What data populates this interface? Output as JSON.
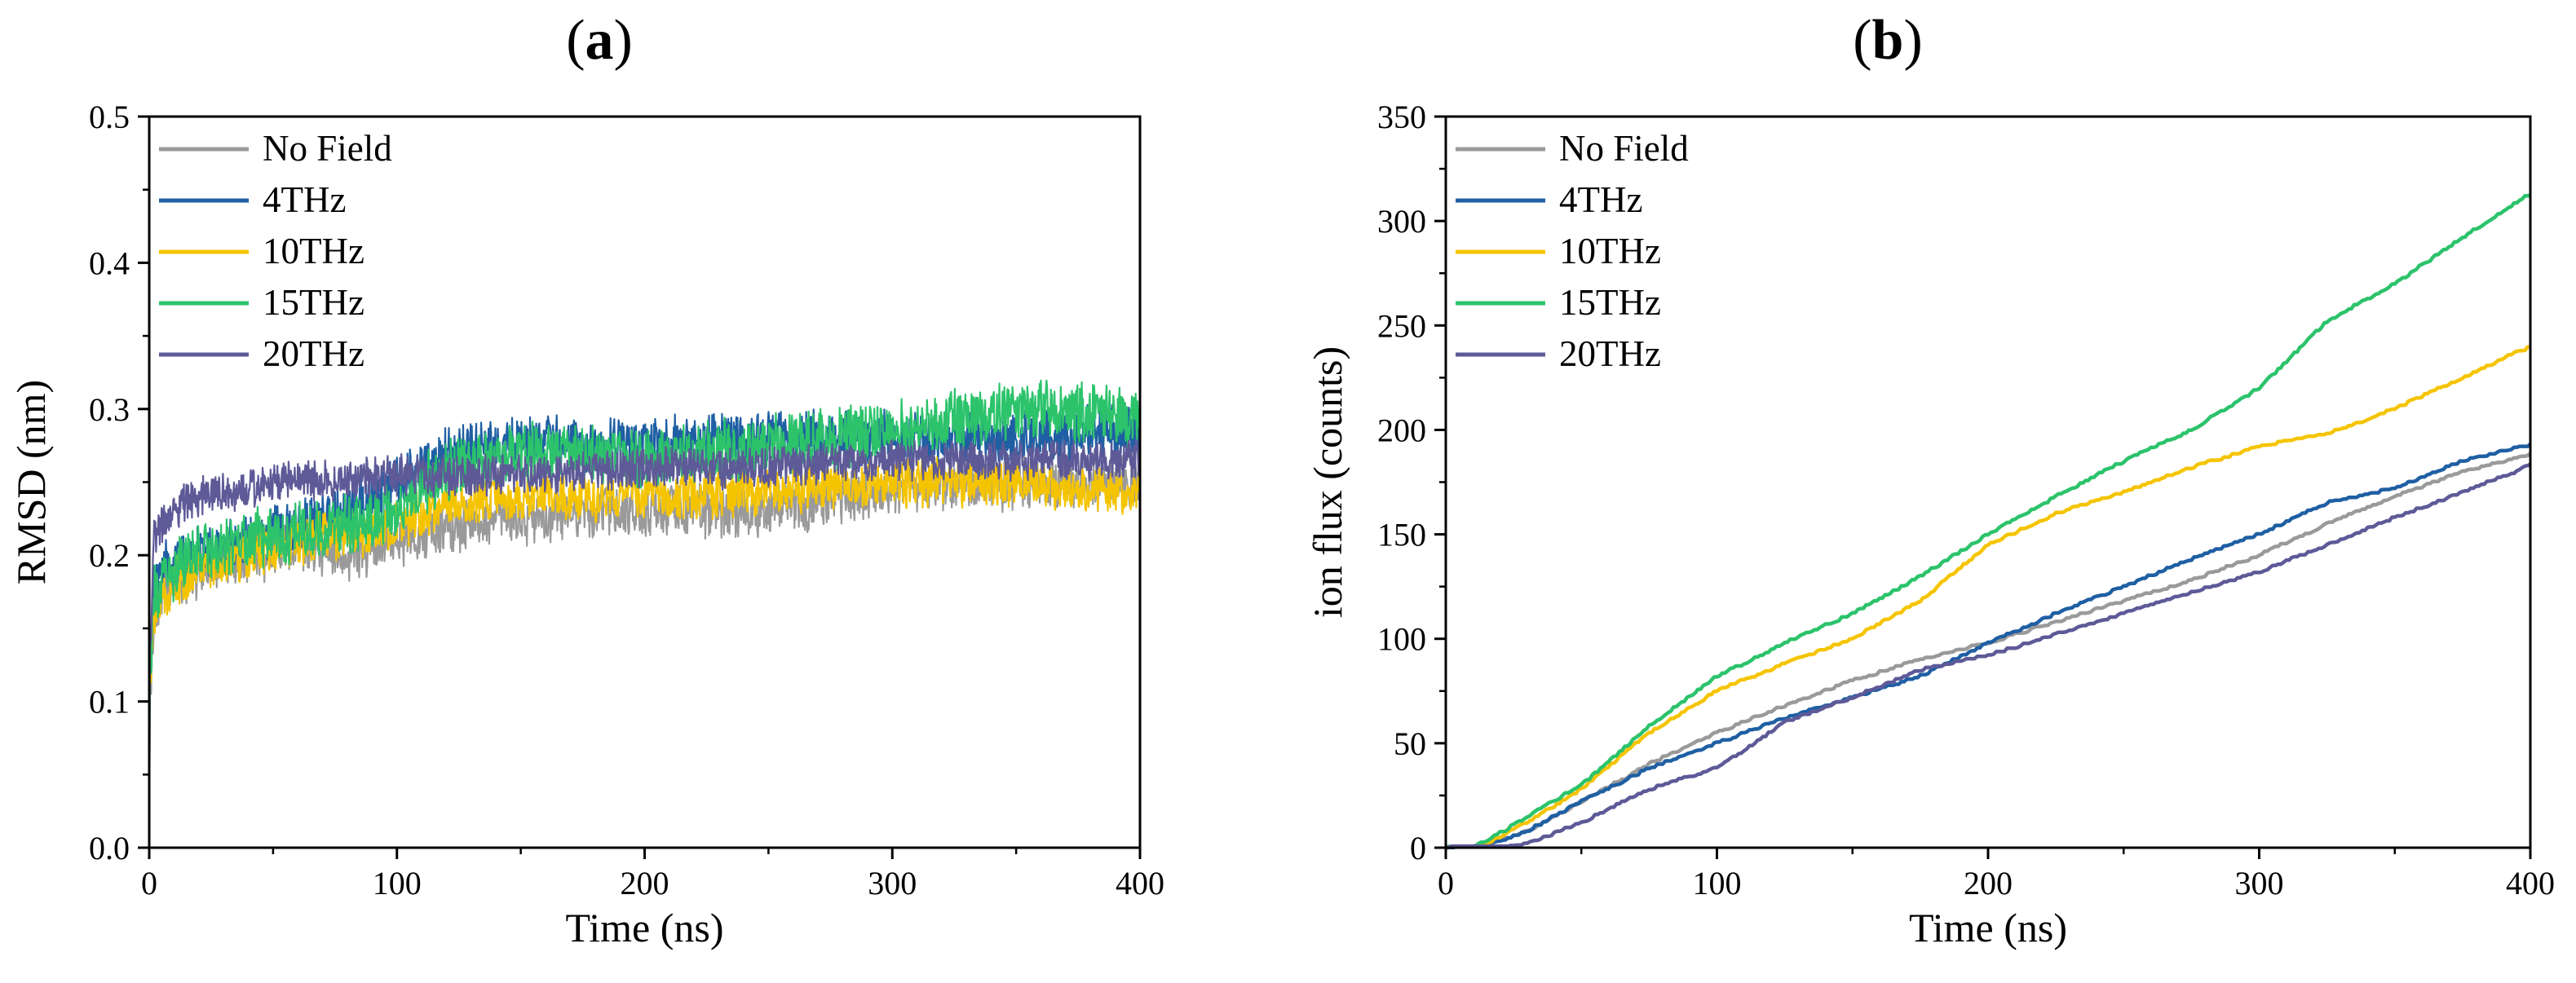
{
  "panels": [
    {
      "label_pre": "(",
      "label_mid": "a",
      "label_post": ")"
    },
    {
      "label_pre": "(",
      "label_mid": "b",
      "label_post": ")"
    }
  ],
  "chart_data": [
    {
      "type": "line",
      "panel": "a",
      "xlabel": "Time (ns)",
      "ylabel": "RMSD (nm)",
      "xlim": [
        0,
        400
      ],
      "ylim": [
        0,
        0.5
      ],
      "xticks": [
        "0",
        "100",
        "200",
        "300",
        "400"
      ],
      "yticks": [
        "0.0",
        "0.1",
        "0.2",
        "0.3",
        "0.4",
        "0.5"
      ],
      "legend_position": "top-left",
      "noisy": true,
      "series": [
        {
          "name": "No Field",
          "color": "#9a9a9a",
          "x": [
            0,
            2,
            5,
            10,
            20,
            40,
            60,
            80,
            100,
            120,
            150,
            200,
            250,
            300,
            350,
            400
          ],
          "y": [
            0.1,
            0.16,
            0.17,
            0.18,
            0.19,
            0.2,
            0.205,
            0.2,
            0.21,
            0.22,
            0.225,
            0.23,
            0.23,
            0.245,
            0.25,
            0.25
          ],
          "amp": 0.016
        },
        {
          "name": "4THz",
          "color": "#1f5fa3",
          "x": [
            0,
            2,
            5,
            10,
            20,
            40,
            60,
            80,
            100,
            120,
            150,
            200,
            250,
            300,
            350,
            400
          ],
          "y": [
            0.11,
            0.18,
            0.19,
            0.195,
            0.2,
            0.21,
            0.22,
            0.23,
            0.25,
            0.27,
            0.275,
            0.275,
            0.28,
            0.28,
            0.28,
            0.285
          ],
          "amp": 0.016
        },
        {
          "name": "10THz",
          "color": "#f5c400",
          "x": [
            0,
            2,
            5,
            10,
            20,
            40,
            60,
            80,
            100,
            120,
            150,
            200,
            250,
            300,
            350,
            400
          ],
          "y": [
            0.11,
            0.16,
            0.17,
            0.18,
            0.19,
            0.2,
            0.21,
            0.215,
            0.22,
            0.235,
            0.24,
            0.24,
            0.245,
            0.25,
            0.25,
            0.24
          ],
          "amp": 0.015
        },
        {
          "name": "15THz",
          "color": "#2cc36b",
          "x": [
            0,
            2,
            5,
            10,
            20,
            40,
            60,
            80,
            100,
            120,
            150,
            200,
            250,
            300,
            350,
            400
          ],
          "y": [
            0.11,
            0.17,
            0.18,
            0.19,
            0.2,
            0.21,
            0.215,
            0.22,
            0.23,
            0.26,
            0.27,
            0.265,
            0.275,
            0.285,
            0.3,
            0.295
          ],
          "amp": 0.018
        },
        {
          "name": "20THz",
          "color": "#5e5a98",
          "x": [
            0,
            2,
            5,
            10,
            20,
            40,
            60,
            80,
            100,
            120,
            150,
            200,
            250,
            300,
            350,
            400
          ],
          "y": [
            0.12,
            0.21,
            0.22,
            0.23,
            0.24,
            0.245,
            0.25,
            0.25,
            0.255,
            0.255,
            0.255,
            0.26,
            0.26,
            0.265,
            0.265,
            0.265
          ],
          "amp": 0.012
        }
      ]
    },
    {
      "type": "line",
      "panel": "b",
      "xlabel": "Time (ns)",
      "ylabel": "ion flux (counts)",
      "xlim": [
        0,
        400
      ],
      "ylim": [
        0,
        350
      ],
      "xticks": [
        "0",
        "100",
        "200",
        "300",
        "400"
      ],
      "yticks": [
        "0",
        "50",
        "100",
        "150",
        "200",
        "250",
        "300",
        "350"
      ],
      "legend_position": "top-left",
      "noisy": false,
      "series": [
        {
          "name": "No Field",
          "color": "#9a9a9a",
          "x": [
            0,
            10,
            20,
            30,
            50,
            75,
            100,
            125,
            150,
            175,
            200,
            225,
            250,
            275,
            300,
            325,
            350,
            375,
            400
          ],
          "y": [
            0,
            0,
            3,
            8,
            22,
            40,
            55,
            68,
            80,
            90,
            98,
            108,
            118,
            128,
            140,
            155,
            168,
            180,
            188
          ]
        },
        {
          "name": "4THz",
          "color": "#1f5fa3",
          "x": [
            0,
            10,
            20,
            30,
            50,
            75,
            100,
            125,
            150,
            175,
            200,
            225,
            250,
            275,
            300,
            325,
            350,
            375,
            400
          ],
          "y": [
            0,
            0,
            3,
            8,
            22,
            38,
            50,
            62,
            72,
            82,
            98,
            112,
            125,
            138,
            150,
            165,
            172,
            185,
            193
          ]
        },
        {
          "name": "10THz",
          "color": "#f5c400",
          "x": [
            0,
            10,
            20,
            30,
            50,
            75,
            100,
            125,
            150,
            175,
            200,
            225,
            250,
            275,
            300,
            325,
            350,
            375,
            400
          ],
          "y": [
            0,
            0,
            5,
            12,
            28,
            55,
            75,
            88,
            100,
            118,
            145,
            160,
            170,
            182,
            192,
            198,
            210,
            225,
            240
          ]
        },
        {
          "name": "15THz",
          "color": "#2cc36b",
          "x": [
            0,
            10,
            20,
            30,
            50,
            75,
            100,
            125,
            150,
            175,
            200,
            225,
            250,
            275,
            300,
            325,
            350,
            375,
            400
          ],
          "y": [
            0,
            0,
            7,
            15,
            30,
            58,
            82,
            98,
            112,
            130,
            150,
            168,
            185,
            200,
            220,
            252,
            270,
            292,
            313
          ]
        },
        {
          "name": "20THz",
          "color": "#5e5a98",
          "x": [
            0,
            10,
            20,
            30,
            50,
            75,
            100,
            125,
            150,
            175,
            200,
            225,
            250,
            275,
            300,
            325,
            350,
            375,
            400
          ],
          "y": [
            0,
            0,
            0,
            2,
            12,
            28,
            38,
            60,
            72,
            85,
            92,
            102,
            112,
            122,
            132,
            145,
            158,
            170,
            183
          ]
        }
      ]
    }
  ]
}
